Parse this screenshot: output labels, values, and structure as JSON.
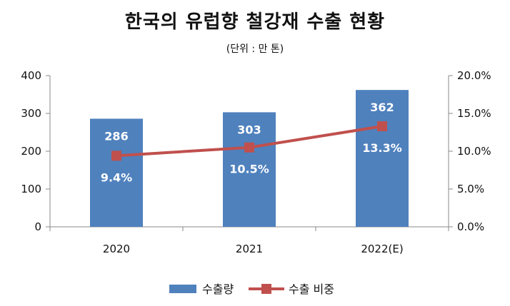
{
  "chart_data": {
    "type": "bar+line",
    "title": "한국의 유럽향 철강재 수출 현황",
    "subtitle": "(단위 : 만 톤)",
    "categories": [
      "2020",
      "2021",
      "2022(E)"
    ],
    "series": [
      {
        "name": "수출량",
        "type": "bar",
        "axis": "left",
        "values": [
          286,
          303,
          362
        ],
        "labels": [
          "286",
          "303",
          "362"
        ],
        "color": "#4F81BD"
      },
      {
        "name": "수출 비중",
        "type": "line",
        "axis": "right",
        "values": [
          9.4,
          10.5,
          13.3
        ],
        "labels": [
          "9.4%",
          "10.5%",
          "13.3%"
        ],
        "color": "#C0504D"
      }
    ],
    "y_left": {
      "ylim": [
        0,
        400
      ],
      "ticks": [
        "0",
        "100",
        "200",
        "300",
        "400"
      ]
    },
    "y_right": {
      "ylim": [
        0,
        20
      ],
      "ticks": [
        "0.0%",
        "5.0%",
        "10.0%",
        "15.0%",
        "20.0%"
      ]
    },
    "grid": false,
    "legend": "bottom"
  }
}
